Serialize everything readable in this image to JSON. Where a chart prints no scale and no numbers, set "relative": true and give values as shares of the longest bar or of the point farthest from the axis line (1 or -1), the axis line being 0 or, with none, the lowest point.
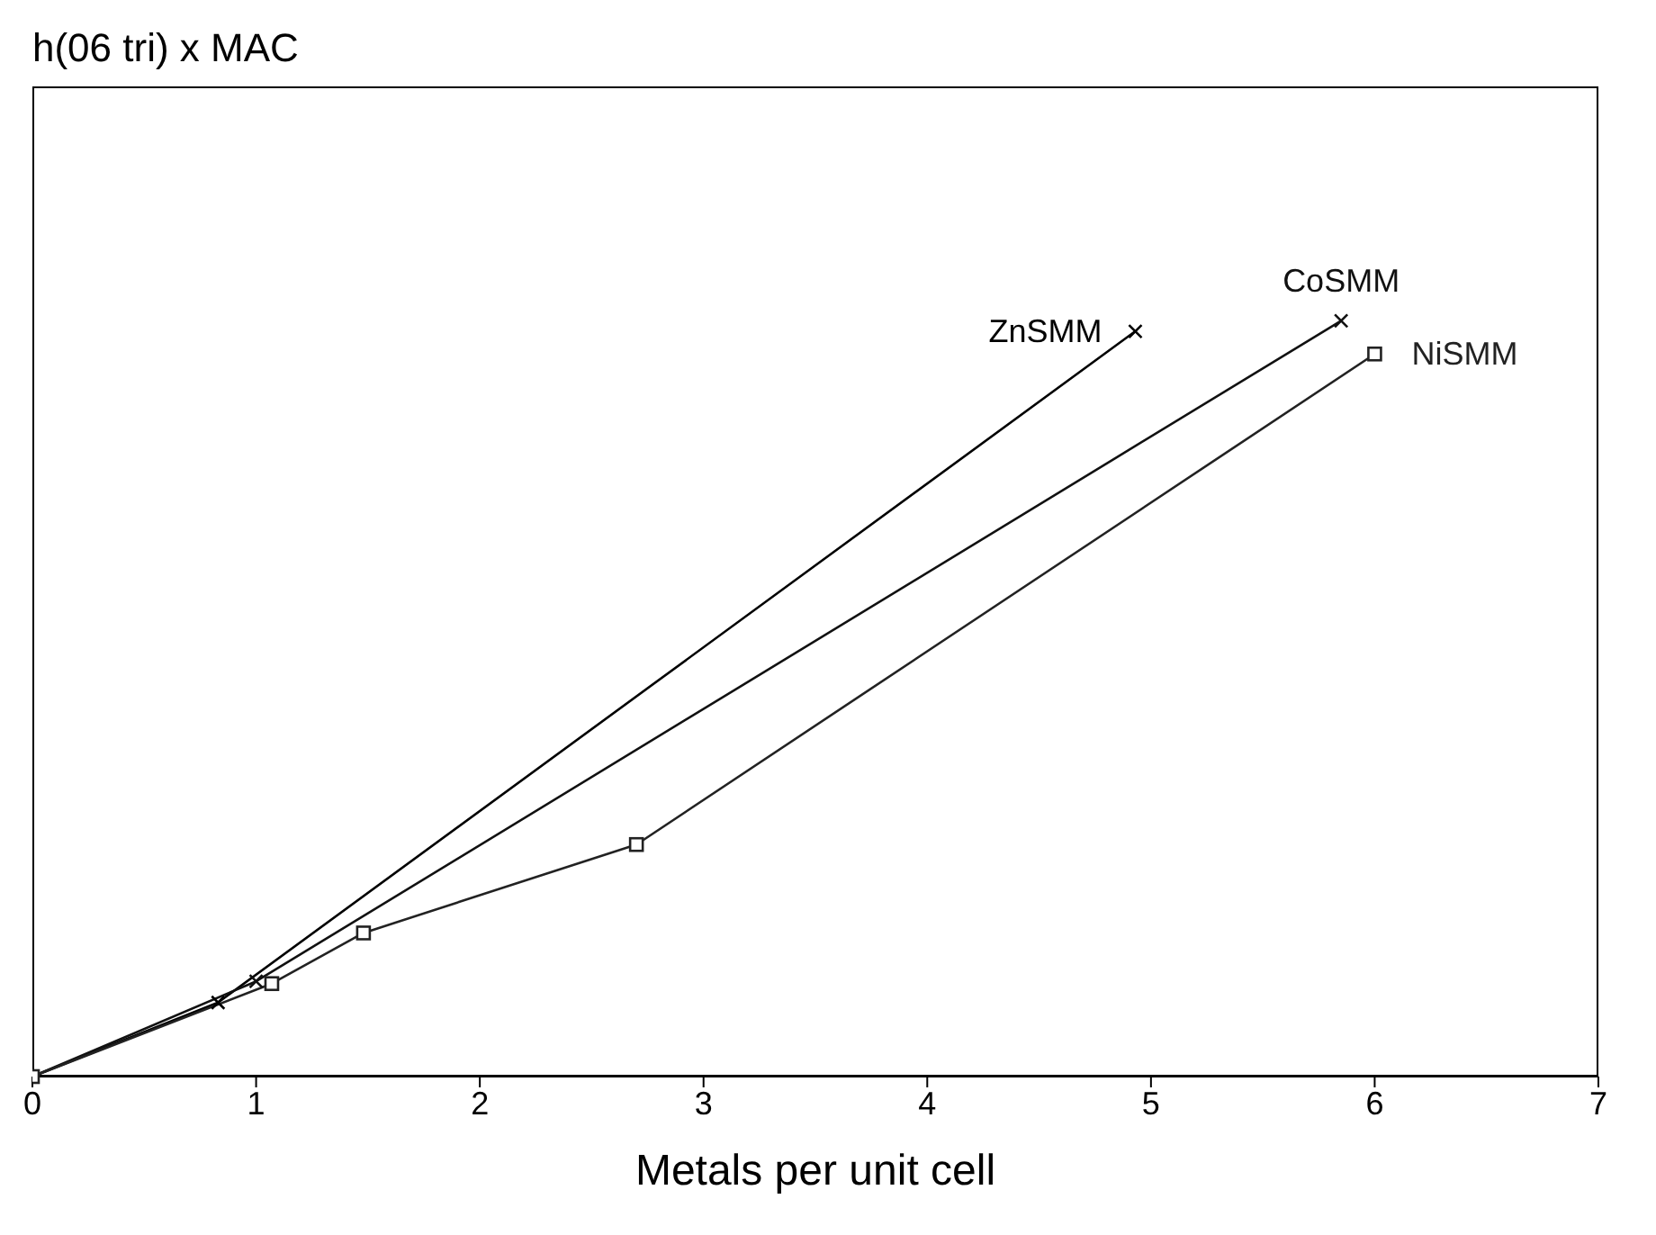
{
  "chart_data": {
    "type": "line",
    "annotations": [
      "h(06 tri) x MAC"
    ],
    "xlabel": "Metals per unit cell",
    "relative": true,
    "xlim": [
      0,
      7
    ],
    "xticks": [
      0,
      1,
      2,
      3,
      4,
      5,
      6,
      7
    ],
    "series": [
      {
        "name": "ZnSMM",
        "color": "#000000",
        "marker": "cross",
        "x": [
          0,
          0.83,
          4.93
        ],
        "values": [
          0,
          0.098,
          0.986
        ]
      },
      {
        "name": "CoSMM",
        "color": "#111111",
        "marker": "cross",
        "x": [
          0,
          1.0,
          5.85
        ],
        "values": [
          0,
          0.126,
          1
        ]
      },
      {
        "name": "NiSMM",
        "color": "#222222",
        "marker": "square",
        "x": [
          0,
          1.07,
          1.48,
          2.7,
          6.0
        ],
        "values": [
          0,
          0.123,
          0.19,
          0.307,
          0.956
        ]
      }
    ]
  }
}
